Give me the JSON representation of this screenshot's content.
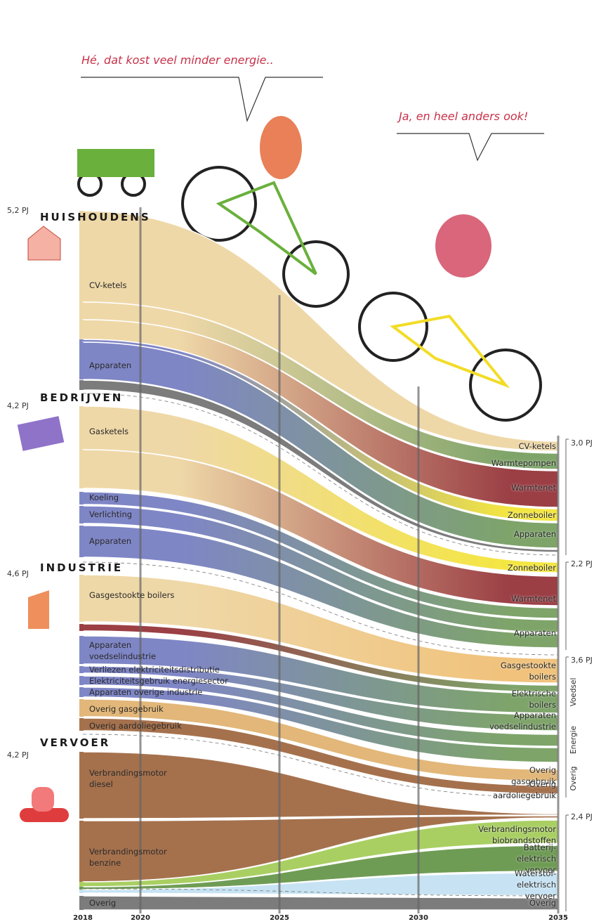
{
  "speech": [
    "Hé, dat kost veel minder energie..",
    "Ja, en heel anders ook!"
  ],
  "years": [
    "2018",
    "2020",
    "2025",
    "2030",
    "2035"
  ],
  "sectors": [
    {
      "name": "HUISHOUDENS",
      "start": "5,2 PJ",
      "end": "3,0 PJ",
      "left": [
        "CV-ketels",
        "Apparaten"
      ],
      "right": [
        "CV-ketels",
        "Warmtepompen",
        "Warmtenet",
        "Zonneboiler",
        "Apparaten"
      ]
    },
    {
      "name": "BEDRIJVEN",
      "start": "4,2 PJ",
      "end": "2,2 PJ",
      "left": [
        "Gasketels",
        "Koeling",
        "Verlichting",
        "Apparaten"
      ],
      "right": [
        "Zonneboiler",
        "Warmtenet",
        "Apparaten"
      ]
    },
    {
      "name": "INDUSTRIE",
      "start": "4,6 PJ",
      "end": "3,6 PJ",
      "left": [
        "Gasgestookte boilers",
        "Apparaten\nvoedselindustrie",
        "Verliezen elektriciteitsdistributie",
        "Elektriciteitsgebruik energiesector",
        "Apparaten overige industrie",
        "Overig gasgebruik",
        "Overig aardoliegebruik"
      ],
      "right": [
        "Gasgestookte boilers",
        "Elektrische boilers",
        "Apparaten voedselindustrie",
        "Overig gasgebruik",
        "Overig aardoliegebruik"
      ],
      "groups": [
        "Voedsel",
        "Energie",
        "Overig"
      ]
    },
    {
      "name": "VERVOER",
      "start": "4,2 PJ",
      "end": "2,4 PJ",
      "left": [
        "Verbrandingsmotor\ndiesel",
        "Verbrandingsmotor\nbenzine",
        "Overig"
      ],
      "right": [
        "Verbrandingsmotor biobrandstoffen",
        "Batterij-elektrisch vervoer",
        "Waterstof-elektrisch vervoer",
        "Overig"
      ]
    }
  ]
}
